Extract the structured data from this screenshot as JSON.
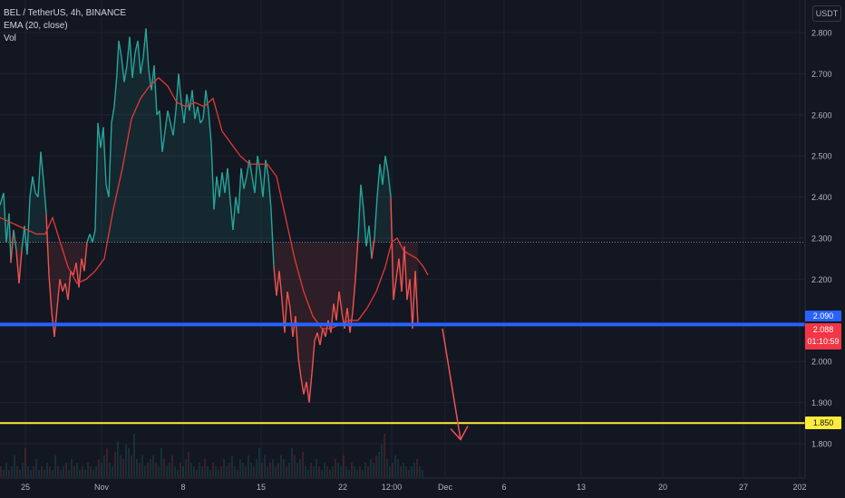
{
  "legend": {
    "symbol": "BEL / TetherUS, 4h, BINANCE",
    "indicator": "EMA (20, close)",
    "volume": "Vol"
  },
  "currency_label": "USDT",
  "price_tags": {
    "blue_line": "2.090",
    "last_price": "2.088",
    "countdown": "01:10:59",
    "yellow_line": "1.850"
  },
  "colors": {
    "background": "#131722",
    "bull": "#26a69a",
    "bear": "#ef5350",
    "ema": "#e53935",
    "support_blue": "#2962ff",
    "support_yellow": "#ffeb3b",
    "arrow": "#ef5350"
  },
  "chart_data": {
    "type": "line",
    "y_axis": {
      "position": "right",
      "ylim": [
        1.72,
        2.86
      ],
      "tick_labels": [
        "2.800",
        "2.700",
        "2.600",
        "2.500",
        "2.400",
        "2.300",
        "2.200",
        "2.000",
        "1.900",
        "1.800"
      ]
    },
    "x_axis": {
      "tick_labels": [
        "25",
        "Nov",
        "8",
        "15",
        "22",
        "12:00",
        "Dec",
        "6",
        "13",
        "20",
        "27",
        "202"
      ]
    },
    "grid": true,
    "legend_placement": "top-left",
    "price_series": {
      "name": "BEL / TetherUS",
      "points": [
        [
          0,
          2.38
        ],
        [
          4,
          2.41
        ],
        [
          7,
          2.29
        ],
        [
          10,
          2.36
        ],
        [
          12,
          2.24
        ],
        [
          15,
          2.32
        ],
        [
          18,
          2.27
        ],
        [
          21,
          2.19
        ],
        [
          24,
          2.27
        ],
        [
          27,
          2.33
        ],
        [
          30,
          2.26
        ],
        [
          33,
          2.4
        ],
        [
          36,
          2.45
        ],
        [
          39,
          2.41
        ],
        [
          42,
          2.4
        ],
        [
          45,
          2.51
        ],
        [
          48,
          2.44
        ],
        [
          51,
          2.36
        ],
        [
          54,
          2.21
        ],
        [
          57,
          2.12
        ],
        [
          60,
          2.06
        ],
        [
          63,
          2.13
        ],
        [
          66,
          2.2
        ],
        [
          69,
          2.17
        ],
        [
          72,
          2.19
        ],
        [
          75,
          2.15
        ],
        [
          78,
          2.22
        ],
        [
          81,
          2.21
        ],
        [
          84,
          2.24
        ],
        [
          87,
          2.18
        ],
        [
          90,
          2.25
        ],
        [
          93,
          2.22
        ],
        [
          96,
          2.29
        ],
        [
          99,
          2.31
        ],
        [
          102,
          2.29
        ],
        [
          105,
          2.32
        ],
        [
          108,
          2.58
        ],
        [
          111,
          2.52
        ],
        [
          114,
          2.57
        ],
        [
          117,
          2.43
        ],
        [
          120,
          2.4
        ],
        [
          123,
          2.58
        ],
        [
          126,
          2.62
        ],
        [
          129,
          2.7
        ],
        [
          131,
          2.78
        ],
        [
          134,
          2.74
        ],
        [
          137,
          2.68
        ],
        [
          140,
          2.72
        ],
        [
          143,
          2.79
        ],
        [
          146,
          2.69
        ],
        [
          149,
          2.75
        ],
        [
          152,
          2.78
        ],
        [
          155,
          2.7
        ],
        [
          158,
          2.74
        ],
        [
          161,
          2.81
        ],
        [
          164,
          2.71
        ],
        [
          167,
          2.66
        ],
        [
          170,
          2.72
        ],
        [
          173,
          2.6
        ],
        [
          176,
          2.61
        ],
        [
          179,
          2.51
        ],
        [
          182,
          2.56
        ],
        [
          185,
          2.61
        ],
        [
          188,
          2.58
        ],
        [
          191,
          2.55
        ],
        [
          194,
          2.61
        ],
        [
          197,
          2.7
        ],
        [
          200,
          2.63
        ],
        [
          203,
          2.58
        ],
        [
          206,
          2.65
        ],
        [
          209,
          2.61
        ],
        [
          212,
          2.66
        ],
        [
          215,
          2.59
        ],
        [
          218,
          2.62
        ],
        [
          221,
          2.58
        ],
        [
          224,
          2.59
        ],
        [
          227,
          2.66
        ],
        [
          230,
          2.61
        ],
        [
          233,
          2.53
        ],
        [
          236,
          2.37
        ],
        [
          239,
          2.45
        ],
        [
          242,
          2.4
        ],
        [
          245,
          2.46
        ],
        [
          248,
          2.41
        ],
        [
          251,
          2.47
        ],
        [
          254,
          2.39
        ],
        [
          257,
          2.32
        ],
        [
          260,
          2.4
        ],
        [
          263,
          2.36
        ],
        [
          266,
          2.47
        ],
        [
          269,
          2.42
        ],
        [
          272,
          2.45
        ],
        [
          275,
          2.49
        ],
        [
          278,
          2.45
        ],
        [
          281,
          2.41
        ],
        [
          284,
          2.5
        ],
        [
          287,
          2.46
        ],
        [
          290,
          2.4
        ],
        [
          293,
          2.49
        ],
        [
          296,
          2.45
        ],
        [
          299,
          2.37
        ],
        [
          302,
          2.23
        ],
        [
          305,
          2.16
        ],
        [
          308,
          2.22
        ],
        [
          311,
          2.15
        ],
        [
          314,
          2.07
        ],
        [
          317,
          2.17
        ],
        [
          320,
          2.13
        ],
        [
          323,
          2.06
        ],
        [
          326,
          2.11
        ],
        [
          329,
          2.01
        ],
        [
          332,
          1.96
        ],
        [
          335,
          1.92
        ],
        [
          338,
          1.95
        ],
        [
          341,
          1.9
        ],
        [
          344,
          1.97
        ],
        [
          347,
          2.05
        ],
        [
          350,
          2.07
        ],
        [
          353,
          2.04
        ],
        [
          356,
          2.08
        ],
        [
          359,
          2.06
        ],
        [
          362,
          2.1
        ],
        [
          365,
          2.07
        ],
        [
          368,
          2.14
        ],
        [
          371,
          2.1
        ],
        [
          374,
          2.17
        ],
        [
          377,
          2.12
        ],
        [
          380,
          2.08
        ],
        [
          383,
          2.13
        ],
        [
          386,
          2.07
        ],
        [
          389,
          2.12
        ],
        [
          392,
          2.2
        ],
        [
          395,
          2.3
        ],
        [
          398,
          2.43
        ],
        [
          401,
          2.37
        ],
        [
          404,
          2.28
        ],
        [
          407,
          2.33
        ],
        [
          410,
          2.25
        ],
        [
          413,
          2.3
        ],
        [
          416,
          2.4
        ],
        [
          419,
          2.48
        ],
        [
          422,
          2.43
        ],
        [
          425,
          2.5
        ],
        [
          428,
          2.46
        ],
        [
          431,
          2.4
        ],
        [
          434,
          2.15
        ],
        [
          437,
          2.2
        ],
        [
          440,
          2.25
        ],
        [
          443,
          2.17
        ],
        [
          446,
          2.28
        ],
        [
          449,
          2.15
        ],
        [
          452,
          2.2
        ],
        [
          455,
          2.08
        ],
        [
          458,
          2.22
        ],
        [
          461,
          2.09
        ]
      ]
    },
    "ema_series": {
      "name": "EMA (20, close)",
      "points": [
        [
          0,
          2.35
        ],
        [
          10,
          2.34
        ],
        [
          20,
          2.33
        ],
        [
          30,
          2.32
        ],
        [
          40,
          2.31
        ],
        [
          50,
          2.31
        ],
        [
          58,
          2.35
        ],
        [
          65,
          2.3
        ],
        [
          75,
          2.23
        ],
        [
          85,
          2.19
        ],
        [
          95,
          2.2
        ],
        [
          105,
          2.22
        ],
        [
          115,
          2.25
        ],
        [
          125,
          2.37
        ],
        [
          135,
          2.47
        ],
        [
          145,
          2.59
        ],
        [
          155,
          2.64
        ],
        [
          165,
          2.67
        ],
        [
          175,
          2.69
        ],
        [
          185,
          2.67
        ],
        [
          195,
          2.63
        ],
        [
          205,
          2.62
        ],
        [
          215,
          2.63
        ],
        [
          225,
          2.62
        ],
        [
          235,
          2.64
        ],
        [
          245,
          2.56
        ],
        [
          255,
          2.53
        ],
        [
          265,
          2.5
        ],
        [
          275,
          2.48
        ],
        [
          285,
          2.48
        ],
        [
          295,
          2.48
        ],
        [
          305,
          2.45
        ],
        [
          315,
          2.35
        ],
        [
          325,
          2.25
        ],
        [
          335,
          2.17
        ],
        [
          345,
          2.11
        ],
        [
          355,
          2.08
        ],
        [
          365,
          2.08
        ],
        [
          375,
          2.09
        ],
        [
          385,
          2.1
        ],
        [
          395,
          2.1
        ],
        [
          405,
          2.13
        ],
        [
          415,
          2.17
        ],
        [
          425,
          2.23
        ],
        [
          432,
          2.29
        ],
        [
          438,
          2.3
        ],
        [
          445,
          2.27
        ],
        [
          452,
          2.26
        ],
        [
          460,
          2.25
        ],
        [
          467,
          2.23
        ],
        [
          472,
          2.21
        ]
      ]
    },
    "baseline_value": 2.29,
    "horizontal_lines": [
      {
        "name": "blue support",
        "value": 2.09
      },
      {
        "name": "yellow support",
        "value": 1.85
      }
    ],
    "projection_arrow": {
      "from": [
        488,
        2.08
      ],
      "to": [
        508,
        1.81
      ]
    },
    "volume_bars": [
      3,
      2,
      4,
      2,
      3,
      6,
      3,
      2,
      4,
      8,
      3,
      2,
      3,
      5,
      2,
      3,
      2,
      4,
      3,
      2,
      6,
      3,
      2,
      3,
      4,
      2,
      5,
      3,
      4,
      2,
      3,
      2,
      4,
      3,
      2,
      3,
      5,
      4,
      6,
      8,
      4,
      3,
      7,
      10,
      6,
      5,
      9,
      8,
      6,
      12,
      5,
      4,
      6,
      3,
      4,
      5,
      6,
      4,
      3,
      8,
      5,
      3,
      4,
      6,
      3,
      2,
      4,
      3,
      5,
      7,
      4,
      3,
      2,
      4,
      3,
      5,
      3,
      2,
      4,
      3,
      2,
      3,
      5,
      3,
      4,
      6,
      3,
      2,
      5,
      4,
      3,
      6,
      4,
      3,
      5,
      8,
      4,
      6,
      3,
      4,
      5,
      3,
      4,
      6,
      5,
      3,
      4,
      8,
      6,
      4,
      5,
      7,
      3,
      2,
      4,
      3,
      5,
      3,
      2,
      4,
      3,
      2,
      3,
      5,
      4,
      3,
      6,
      3,
      2,
      4,
      3,
      2,
      3,
      2,
      4,
      3,
      5,
      4,
      6,
      7,
      9,
      12,
      5,
      3,
      4,
      6,
      5,
      3,
      4,
      3,
      2,
      3,
      4,
      5,
      3,
      2
    ]
  }
}
